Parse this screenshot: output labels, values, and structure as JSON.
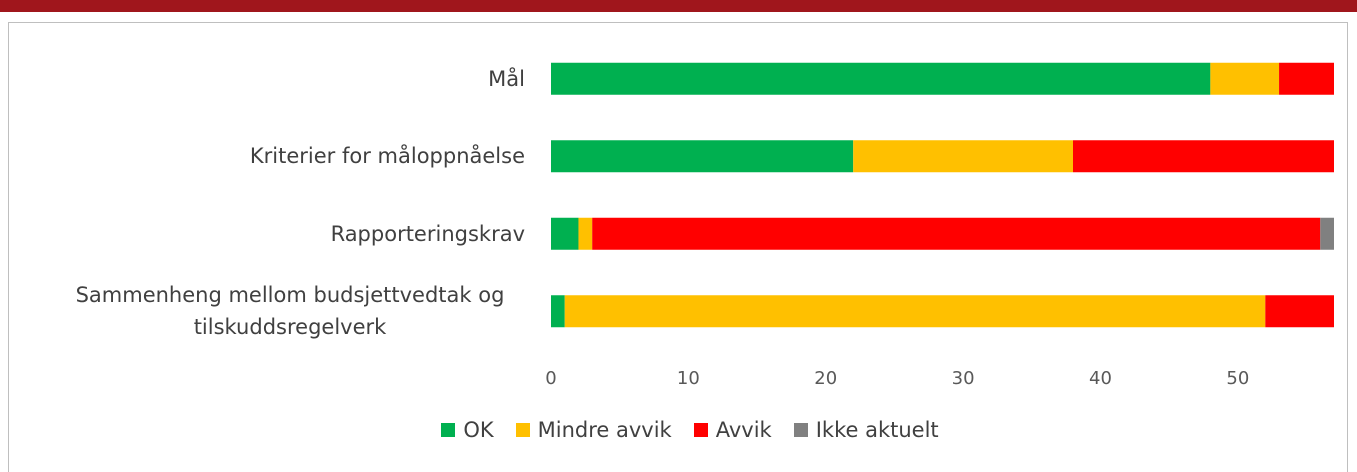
{
  "chart_data": {
    "type": "stacked_barh",
    "categories": [
      "Mål",
      "Kriterier for måloppnåelse",
      "Rapporteringskrav",
      "Sammenheng mellom budsjettvedtak og tilskuddsregelverk"
    ],
    "series": [
      {
        "name": "OK",
        "color": "#00b050",
        "values": [
          48,
          22,
          2,
          1
        ]
      },
      {
        "name": "Mindre avvik",
        "color": "#ffc000",
        "values": [
          5,
          16,
          1,
          51
        ]
      },
      {
        "name": "Avvik",
        "color": "#ff0000",
        "values": [
          4,
          19,
          53,
          5
        ]
      },
      {
        "name": "Ikke aktuelt",
        "color": "#808080",
        "values": [
          0,
          0,
          1,
          0
        ]
      }
    ],
    "xlim": [
      0,
      57
    ],
    "xticks": [
      0,
      10,
      20,
      30,
      40,
      50
    ],
    "grid": false,
    "legend": "bottom"
  }
}
